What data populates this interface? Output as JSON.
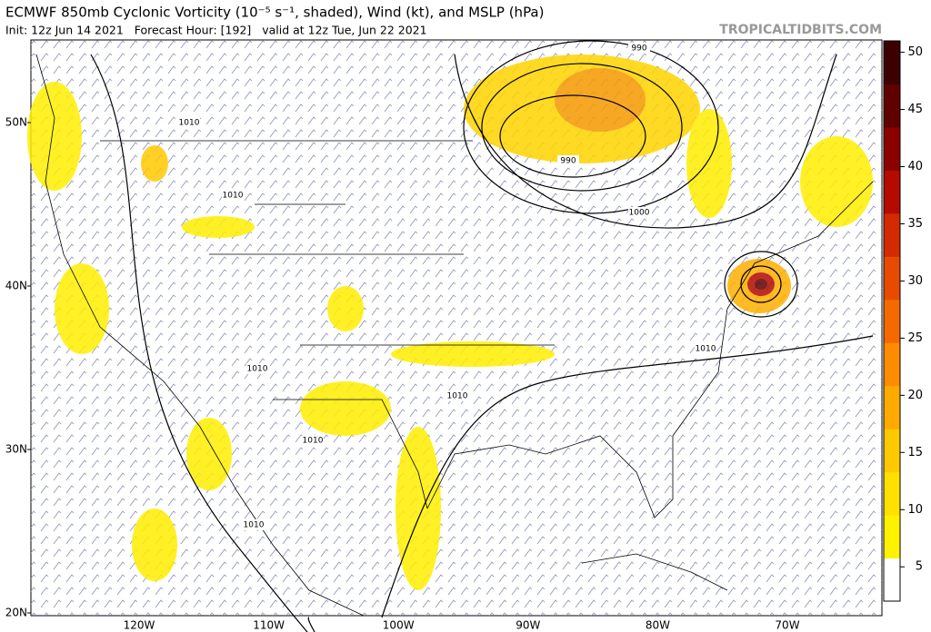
{
  "header": {
    "title": "ECMWF 850mb Cyclonic Vorticity (10⁻⁵ s⁻¹, shaded), Wind (kt), and MSLP (hPa)",
    "subtitle": "Init: 12z Jun 14 2021   Forecast Hour: [192]   valid at 12z Tue, Jun 22 2021",
    "credit": "TROPICALTIDBITS.COM"
  },
  "map": {
    "lat_labels": [
      "50N",
      "40N",
      "30N",
      "20N"
    ],
    "lon_labels": [
      "120W",
      "110W",
      "100W",
      "90W",
      "80W",
      "70W"
    ],
    "isobar_labels": [
      "990",
      "990",
      "1000",
      "1010",
      "1010",
      "1010",
      "1010",
      "1010",
      "1010",
      "1010"
    ]
  },
  "colorbar": {
    "range": [
      2,
      51
    ],
    "ticks": [
      5,
      10,
      15,
      20,
      25,
      30,
      35,
      40,
      45,
      50
    ],
    "colors": [
      "#ffffff",
      "#fff200",
      "#ffe000",
      "#ffc800",
      "#ffaa00",
      "#ff8c00",
      "#f56a00",
      "#e84a00",
      "#d42a00",
      "#b40a00",
      "#8c0000",
      "#600000",
      "#3c0000"
    ]
  }
}
